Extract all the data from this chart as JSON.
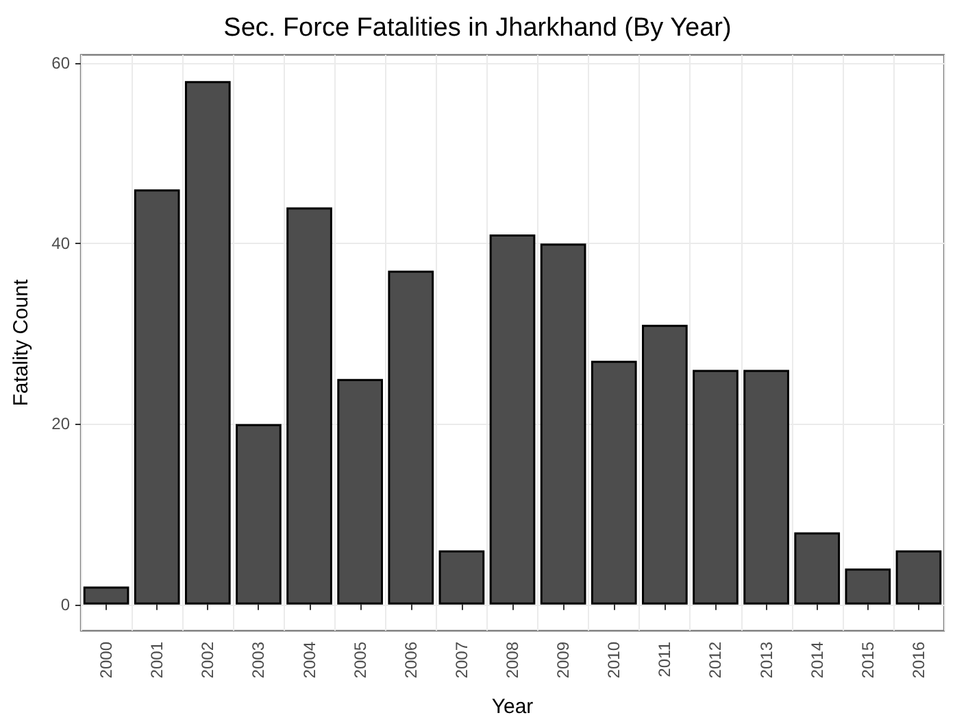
{
  "chart_data": {
    "type": "bar",
    "title": "Sec. Force Fatalities in Jharkhand (By Year)",
    "xlabel": "Year",
    "ylabel": "Fatality Count",
    "categories": [
      "2000",
      "2001",
      "2002",
      "2003",
      "2004",
      "2005",
      "2006",
      "2007",
      "2008",
      "2009",
      "2010",
      "2011",
      "2012",
      "2013",
      "2014",
      "2015",
      "2016"
    ],
    "values": [
      2,
      46,
      58,
      20,
      44,
      25,
      37,
      6,
      41,
      40,
      27,
      31,
      26,
      26,
      8,
      4,
      6
    ],
    "color": "#4d4d4d",
    "ylim": [
      -2.9,
      60.9
    ],
    "yticks": [
      0,
      20,
      40,
      60
    ],
    "grid": true
  }
}
